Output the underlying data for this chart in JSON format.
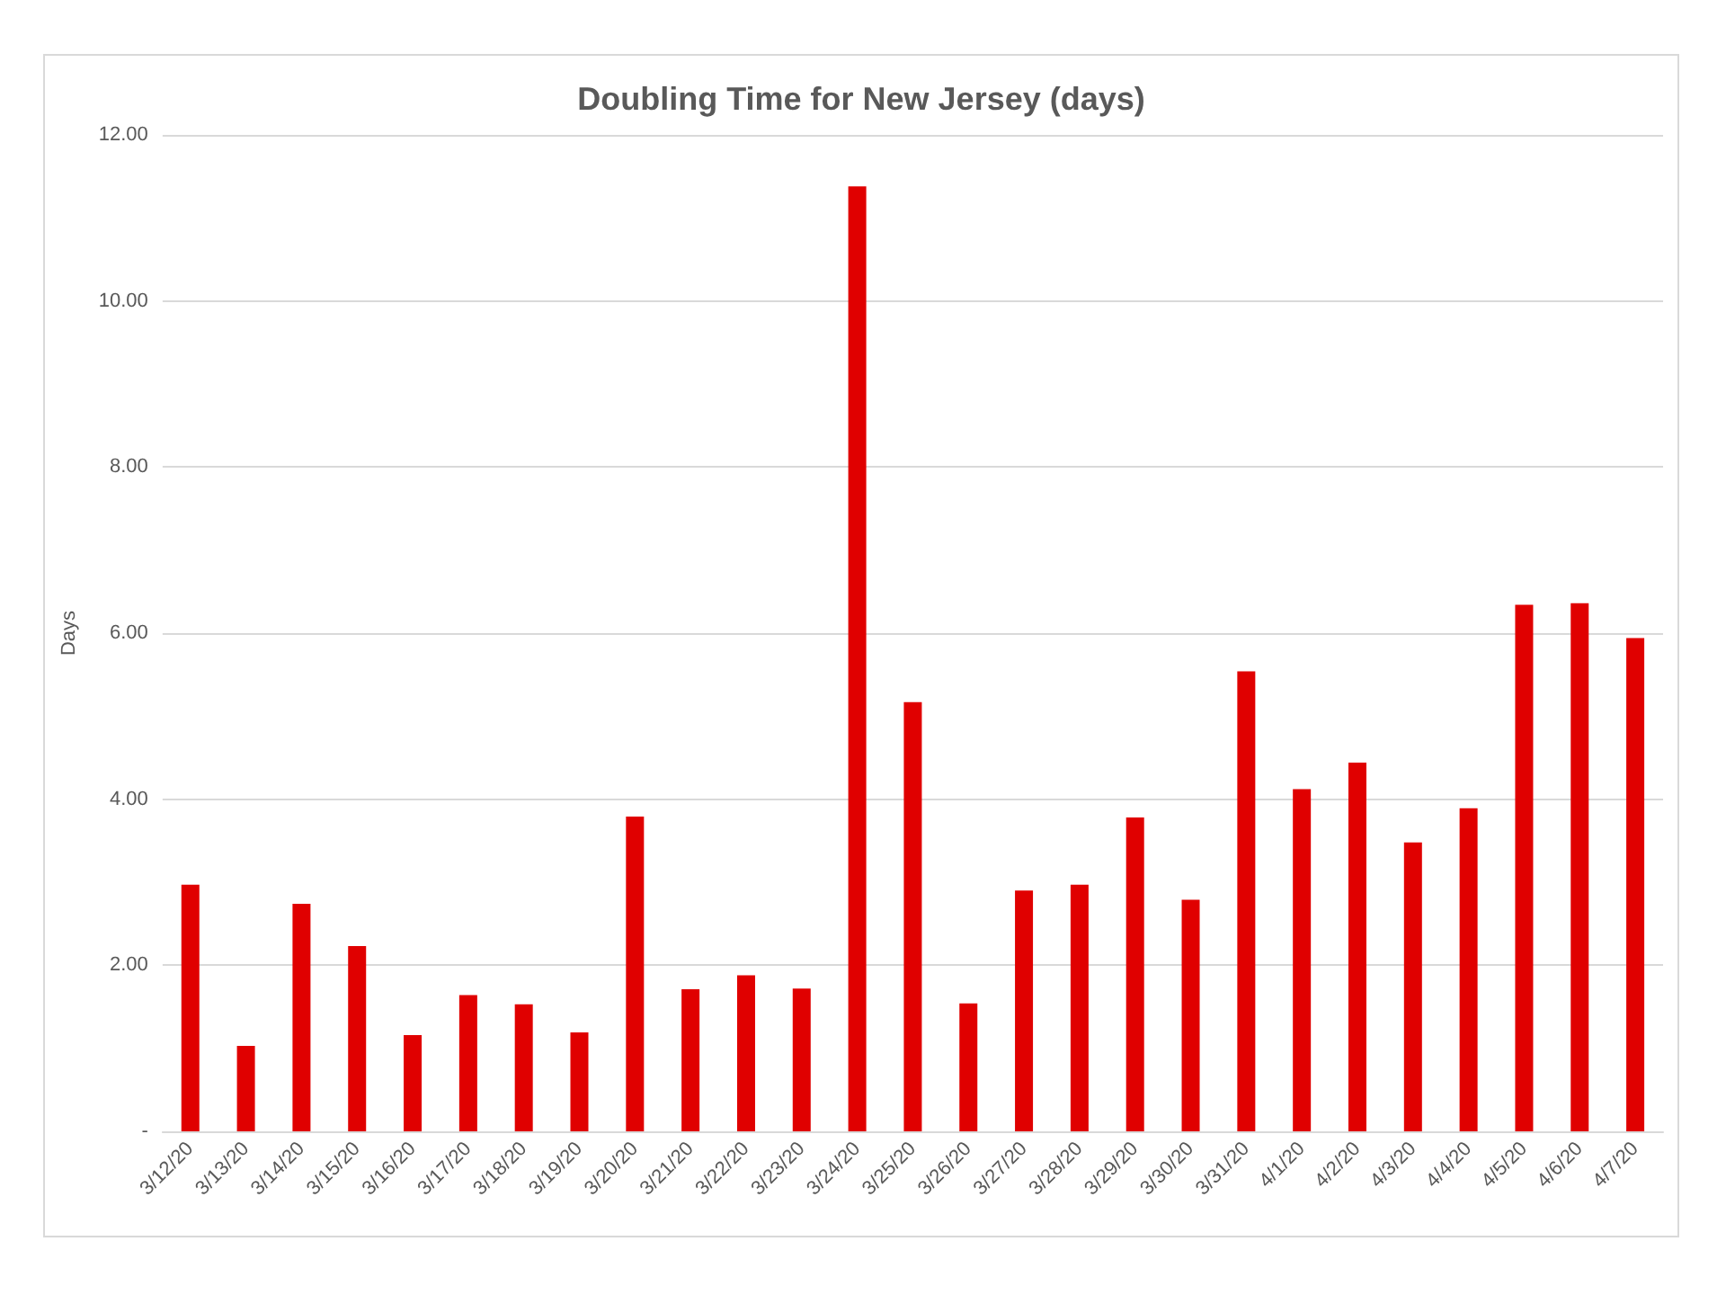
{
  "chart_data": {
    "type": "bar",
    "title": "Doubling Time for New Jersey (days)",
    "ylabel": "Days",
    "categories": [
      "3/12/20",
      "3/13/20",
      "3/14/20",
      "3/15/20",
      "3/16/20",
      "3/17/20",
      "3/18/20",
      "3/19/20",
      "3/20/20",
      "3/21/20",
      "3/22/20",
      "3/23/20",
      "3/24/20",
      "3/25/20",
      "3/26/20",
      "3/27/20",
      "3/28/20",
      "3/29/20",
      "3/30/20",
      "3/31/20",
      "4/1/20",
      "4/2/20",
      "4/3/20",
      "4/4/20",
      "4/5/20",
      "4/6/20",
      "4/7/20"
    ],
    "values": [
      2.97,
      1.03,
      2.74,
      2.23,
      1.16,
      1.64,
      1.53,
      1.19,
      3.79,
      1.71,
      1.88,
      1.72,
      11.38,
      5.17,
      1.54,
      2.9,
      2.97,
      3.78,
      2.79,
      5.54,
      4.12,
      4.44,
      3.48,
      3.89,
      6.34,
      6.36,
      5.94
    ],
    "color": "#e00000",
    "ylim": [
      0,
      12
    ],
    "yticks": [
      {
        "value": 0,
        "label": "-"
      },
      {
        "value": 2,
        "label": "2.00"
      },
      {
        "value": 4,
        "label": "4.00"
      },
      {
        "value": 6,
        "label": "6.00"
      },
      {
        "value": 8,
        "label": "8.00"
      },
      {
        "value": 10,
        "label": "10.00"
      },
      {
        "value": 12,
        "label": "12.00"
      }
    ],
    "grid": "y"
  }
}
